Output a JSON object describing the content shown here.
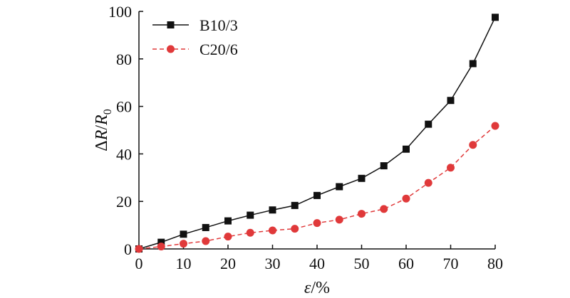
{
  "chart_data": {
    "type": "line",
    "xlabel": "ε/%",
    "ylabel": "ΔR/R0",
    "ylabel_parts": {
      "delta": "Δ",
      "var": "R",
      "slash": "/",
      "base": "R",
      "sub": "0"
    },
    "xlabel_parts": {
      "var": "ε",
      "rest": "/%"
    },
    "xlim": [
      0,
      80
    ],
    "ylim": [
      0,
      100
    ],
    "xticks": [
      "0",
      "10",
      "20",
      "30",
      "40",
      "50",
      "60",
      "70",
      "80"
    ],
    "yticks": [
      "0",
      "20",
      "40",
      "60",
      "80",
      "100"
    ],
    "grid": false,
    "legend_position": "top-left",
    "x": [
      0,
      5,
      10,
      15,
      20,
      25,
      30,
      35,
      40,
      45,
      50,
      55,
      60,
      65,
      70,
      75,
      80
    ],
    "series": [
      {
        "name": "B10/3",
        "color": "#111111",
        "marker": "square",
        "line": "solid",
        "values": [
          0,
          2.8,
          6.2,
          9.0,
          11.8,
          14.2,
          16.4,
          18.3,
          22.5,
          26.2,
          29.7,
          35.0,
          42.0,
          52.5,
          62.5,
          78.0,
          97.5
        ]
      },
      {
        "name": "C20/6",
        "color": "#e0393a",
        "marker": "circle",
        "line": "dashed",
        "values": [
          0,
          1.0,
          2.2,
          3.3,
          5.2,
          6.8,
          7.8,
          8.5,
          10.9,
          12.3,
          14.8,
          16.8,
          21.2,
          27.8,
          34.2,
          43.8,
          51.8
        ]
      }
    ]
  }
}
